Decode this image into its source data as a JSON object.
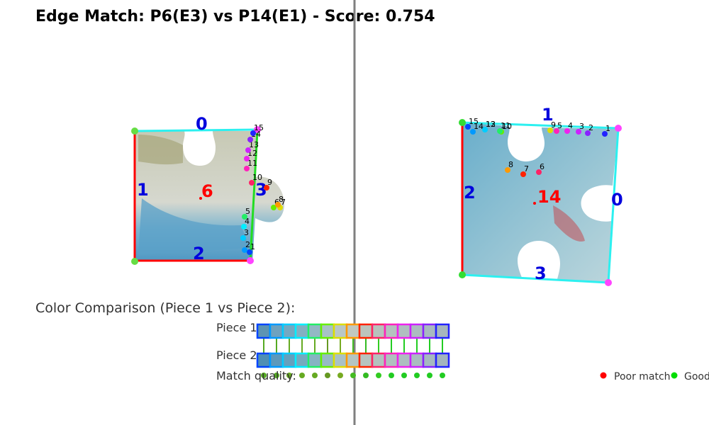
{
  "title": "Edge Match: P6(E3) vs P14(E1) - Score: 0.754",
  "piece_left": {
    "id_label": "6",
    "edges": [
      "0",
      "1",
      "2",
      "3"
    ],
    "point_labels": [
      "1",
      "2",
      "3",
      "4",
      "5",
      "6",
      "7",
      "8",
      "9",
      "10",
      "11",
      "12",
      "13",
      "14",
      "15"
    ],
    "colors": {
      "edge_top": "#2cf0f0",
      "edge_left": "#ff0000",
      "edge_bottom": "#ff0000",
      "edge_right": "#22dd22",
      "corner": "#66dd44",
      "corner_right": "#ff44ff"
    }
  },
  "piece_right": {
    "id_label": "14",
    "edges": [
      "0",
      "1",
      "2",
      "3"
    ],
    "point_labels": [
      "1",
      "2",
      "3",
      "4",
      "5",
      "6",
      "7",
      "8",
      "9",
      "10",
      "11",
      "12",
      "13",
      "14",
      "15"
    ],
    "colors": {
      "edge_left": "#ff0000",
      "edge_other": "#2cf0f0",
      "corner": "#33dd33",
      "corner_right": "#ff44ff"
    }
  },
  "comparison": {
    "header": "Color Comparison (Piece 1 vs Piece 2):",
    "row1_label": "Piece 1",
    "row2_label": "Piece 2",
    "quality_label": "Match quality:",
    "swatch_border_colors": [
      "#0044ff",
      "#0099ff",
      "#00ccff",
      "#00eeff",
      "#22ee66",
      "#66ee00",
      "#dddd00",
      "#ff9900",
      "#ff2200",
      "#ff2266",
      "#ff22bb",
      "#ee22ee",
      "#cc22ff",
      "#8822ff",
      "#2222ff"
    ],
    "swatch_fill_row1": [
      "#5d94b3",
      "#6ea2bf",
      "#74a9c2",
      "#82b0c2",
      "#93b8c4",
      "#a8c2c6",
      "#b9c7c6",
      "#c1c8c0",
      "#bcc4bd",
      "#b8c2bd",
      "#b5c1bf",
      "#b0bec0",
      "#acbcc0",
      "#a8b9bf",
      "#a6b6bd"
    ],
    "swatch_fill_row2": [
      "#4f8fb3",
      "#5c99bb",
      "#65a0bd",
      "#75aabf",
      "#86b3c3",
      "#97bac5",
      "#a9c1c6",
      "#b5c5c2",
      "#b7c4bf",
      "#b3c2be",
      "#b0c0bf",
      "#adbec0",
      "#a9bcc0",
      "#a5b9bf",
      "#a3b5bd"
    ],
    "quality_dot_colors": [
      "#55aa22",
      "#55aa22",
      "#66aa22",
      "#66aa22",
      "#66aa22",
      "#669922",
      "#77aa22",
      "#44bb22",
      "#33bb22",
      "#33cc22",
      "#22cc22",
      "#22cc22",
      "#22cc22",
      "#22cc22",
      "#22cc22"
    ],
    "legend": {
      "poor_label": "Poor match",
      "good_label": "Good",
      "poor_color": "#ff0000",
      "good_color": "#00dd00"
    }
  }
}
